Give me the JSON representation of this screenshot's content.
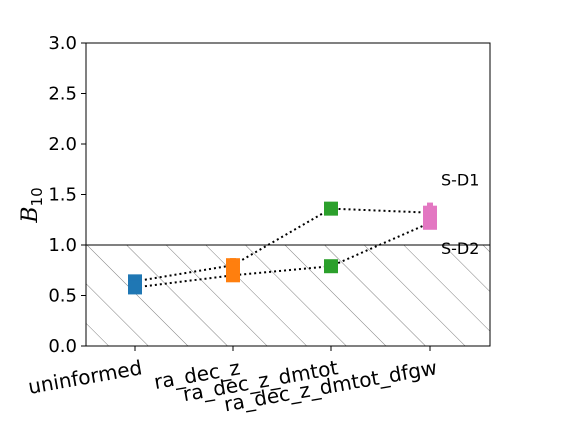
{
  "chart_data": {
    "type": "scatter",
    "title": "",
    "xlabel": "",
    "ylabel": "B",
    "ylabel_subscript": "10",
    "ylim": [
      0,
      3.0
    ],
    "yticks": [
      "0.0",
      "0.5",
      "1.0",
      "1.5",
      "2.0",
      "2.5",
      "3.0"
    ],
    "categories": [
      "uninformed",
      "ra_dec_z",
      "ra_dec_z_dmtot",
      "ra_dec_z_dmtot_dfgw"
    ],
    "category_colors": [
      "#1f77b4",
      "#ff7f0e",
      "#2ca02c",
      "#e377c2"
    ],
    "series": [
      {
        "name": "S-D1",
        "points": [
          {
            "x": "uninformed",
            "y": 0.64,
            "low": 0.56,
            "high": 0.7
          },
          {
            "x": "ra_dec_z",
            "y": 0.8,
            "low": 0.66,
            "high": 0.87
          },
          {
            "x": "ra_dec_z_dmtot",
            "y": 1.36,
            "low": 1.31,
            "high": 1.4
          },
          {
            "x": "ra_dec_z_dmtot_dfgw",
            "y": 1.32,
            "low": 1.18,
            "high": 1.42
          }
        ]
      },
      {
        "name": "S-D2",
        "points": [
          {
            "x": "uninformed",
            "y": 0.58,
            "low": 0.52,
            "high": 0.66
          },
          {
            "x": "ra_dec_z",
            "y": 0.7,
            "low": 0.64,
            "high": 0.84
          },
          {
            "x": "ra_dec_z_dmtot",
            "y": 0.79,
            "low": 0.74,
            "high": 0.84
          },
          {
            "x": "ra_dec_z_dmtot_dfgw",
            "y": 1.22,
            "low": 1.17,
            "high": 1.34
          }
        ]
      }
    ],
    "hatched_region": {
      "from": 0,
      "to": 1.0
    },
    "threshold_line": 1.0,
    "annotations": [
      {
        "text": "S-D1",
        "x": "ra_dec_z_dmtot_dfgw",
        "y": 1.65
      },
      {
        "text": "S-D2",
        "x": "ra_dec_z_dmtot_dfgw",
        "y": 0.97
      }
    ],
    "grid": false,
    "legend": "none"
  },
  "colors": {
    "hatch": "#808080",
    "line": "#000000"
  }
}
